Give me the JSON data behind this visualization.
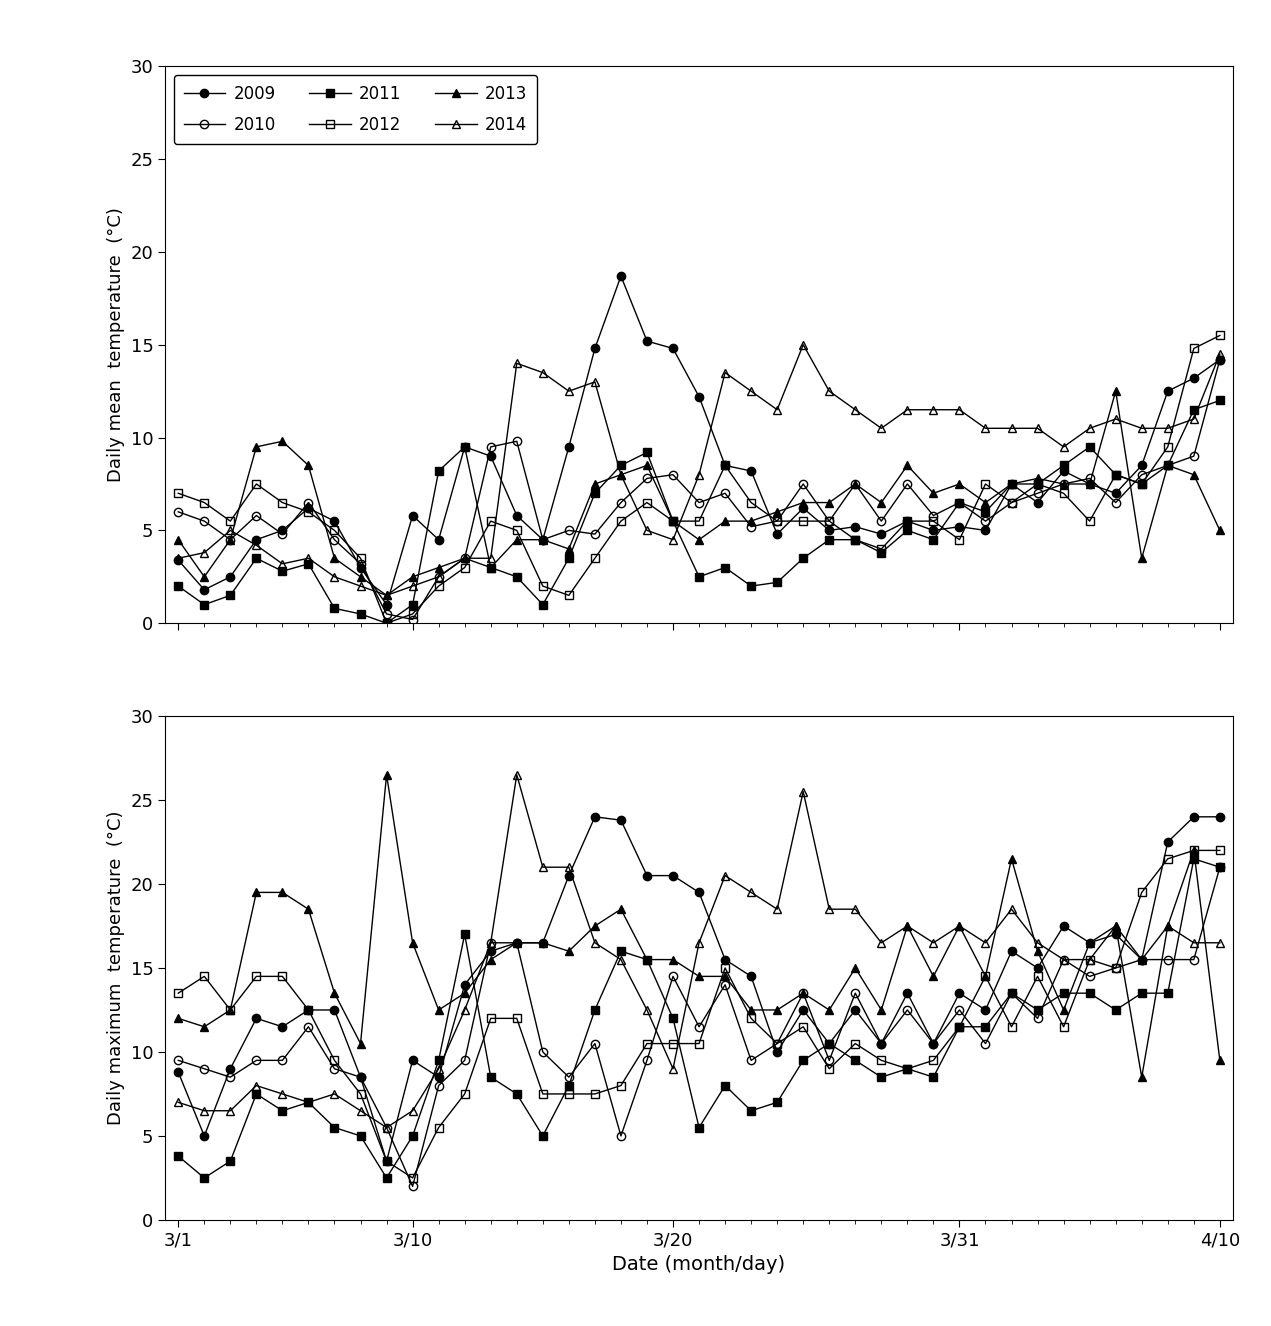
{
  "mean_temp": {
    "2009": [
      3.4,
      1.8,
      2.5,
      4.5,
      5.0,
      6.2,
      5.5,
      3.0,
      1.0,
      5.8,
      4.5,
      9.5,
      9.0,
      5.8,
      4.5,
      9.5,
      14.8,
      18.7,
      15.2,
      14.8,
      12.2,
      8.5,
      8.2,
      4.8,
      6.2,
      5.0,
      5.2,
      4.8,
      5.5,
      5.0,
      5.2,
      5.0,
      7.5,
      6.5,
      8.2,
      7.5,
      7.0,
      8.5,
      12.5,
      13.2,
      14.2
    ],
    "2010": [
      6.0,
      5.5,
      4.5,
      5.8,
      4.8,
      6.5,
      4.5,
      3.2,
      0.5,
      0.2,
      2.5,
      3.5,
      9.5,
      9.8,
      4.5,
      5.0,
      4.8,
      6.5,
      7.8,
      8.0,
      6.5,
      7.0,
      5.2,
      5.5,
      7.5,
      5.5,
      7.5,
      5.5,
      7.5,
      5.8,
      6.5,
      5.5,
      6.5,
      7.0,
      7.5,
      7.8,
      6.5,
      8.0,
      8.5,
      9.0,
      14.2
    ],
    "2011": [
      2.0,
      1.0,
      1.5,
      3.5,
      2.8,
      3.2,
      0.8,
      0.5,
      0.0,
      1.0,
      8.2,
      9.5,
      3.0,
      2.5,
      1.0,
      3.5,
      7.0,
      8.5,
      9.2,
      5.5,
      2.5,
      3.0,
      2.0,
      2.2,
      3.5,
      4.5,
      4.5,
      3.8,
      5.0,
      4.5,
      6.5,
      6.0,
      7.5,
      7.5,
      8.5,
      9.5,
      8.0,
      7.5,
      8.5,
      11.5,
      12.0
    ],
    "2012": [
      7.0,
      6.5,
      5.5,
      7.5,
      6.5,
      6.0,
      5.0,
      3.5,
      0.0,
      0.5,
      2.0,
      3.0,
      5.5,
      5.0,
      2.0,
      1.5,
      3.5,
      5.5,
      6.5,
      5.5,
      5.5,
      8.5,
      6.5,
      5.5,
      5.5,
      5.5,
      4.5,
      4.0,
      5.5,
      5.5,
      4.5,
      7.5,
      6.5,
      7.5,
      7.0,
      5.5,
      8.0,
      7.5,
      9.5,
      14.8,
      15.5
    ],
    "2013": [
      4.5,
      2.5,
      4.5,
      9.5,
      9.8,
      8.5,
      3.5,
      2.5,
      1.5,
      2.5,
      3.0,
      3.5,
      3.0,
      4.5,
      4.5,
      4.0,
      7.5,
      8.0,
      8.5,
      5.5,
      4.5,
      5.5,
      5.5,
      6.0,
      6.5,
      6.5,
      7.5,
      6.5,
      8.5,
      7.0,
      7.5,
      6.5,
      7.5,
      7.8,
      7.5,
      7.5,
      12.5,
      3.5,
      8.5,
      8.0,
      5.0
    ],
    "2014": [
      3.5,
      3.8,
      5.0,
      4.2,
      3.2,
      3.5,
      2.5,
      2.0,
      1.5,
      2.0,
      2.5,
      3.5,
      3.5,
      14.0,
      13.5,
      12.5,
      13.0,
      8.0,
      5.0,
      4.5,
      8.0,
      13.5,
      12.5,
      11.5,
      15.0,
      12.5,
      11.5,
      10.5,
      11.5,
      11.5,
      11.5,
      10.5,
      10.5,
      10.5,
      9.5,
      10.5,
      11.0,
      10.5,
      10.5,
      11.0,
      14.5
    ]
  },
  "max_temp": {
    "2009": [
      8.8,
      5.0,
      9.0,
      12.0,
      11.5,
      12.5,
      12.5,
      8.5,
      3.5,
      9.5,
      8.5,
      14.0,
      16.0,
      16.5,
      16.5,
      20.5,
      24.0,
      23.8,
      20.5,
      20.5,
      19.5,
      15.5,
      14.5,
      10.0,
      12.5,
      10.5,
      12.5,
      10.5,
      13.5,
      10.5,
      13.5,
      12.5,
      16.0,
      15.0,
      17.5,
      16.5,
      17.0,
      15.5,
      22.5,
      24.0,
      24.0
    ],
    "2010": [
      9.5,
      9.0,
      8.5,
      9.5,
      9.5,
      11.5,
      9.0,
      8.5,
      5.5,
      2.0,
      8.0,
      9.5,
      16.5,
      16.5,
      10.0,
      8.5,
      10.5,
      5.0,
      9.5,
      14.5,
      11.5,
      14.0,
      9.5,
      10.5,
      13.5,
      9.5,
      13.5,
      10.5,
      12.5,
      10.5,
      12.5,
      10.5,
      13.5,
      12.0,
      15.5,
      14.5,
      15.0,
      15.5,
      15.5,
      15.5,
      21.0
    ],
    "2011": [
      3.8,
      2.5,
      3.5,
      7.5,
      6.5,
      7.0,
      5.5,
      5.0,
      2.5,
      5.0,
      9.5,
      17.0,
      8.5,
      7.5,
      5.0,
      8.0,
      12.5,
      16.0,
      15.5,
      12.0,
      5.5,
      8.0,
      6.5,
      7.0,
      9.5,
      10.5,
      9.5,
      8.5,
      9.0,
      8.5,
      11.5,
      11.5,
      13.5,
      12.5,
      13.5,
      13.5,
      12.5,
      13.5,
      13.5,
      21.5,
      21.0
    ],
    "2012": [
      13.5,
      14.5,
      12.5,
      14.5,
      14.5,
      12.5,
      9.5,
      7.5,
      3.5,
      2.5,
      5.5,
      7.5,
      12.0,
      12.0,
      7.5,
      7.5,
      7.5,
      8.0,
      10.5,
      10.5,
      10.5,
      15.0,
      12.0,
      10.5,
      11.5,
      9.0,
      10.5,
      9.5,
      9.0,
      9.5,
      11.5,
      14.5,
      11.5,
      14.5,
      11.5,
      15.5,
      15.0,
      19.5,
      21.5,
      22.0,
      22.0
    ],
    "2013": [
      12.0,
      11.5,
      12.5,
      19.5,
      19.5,
      18.5,
      13.5,
      10.5,
      26.5,
      16.5,
      12.5,
      13.5,
      15.5,
      16.5,
      16.5,
      16.0,
      17.5,
      18.5,
      15.5,
      15.5,
      14.5,
      14.5,
      12.5,
      12.5,
      13.5,
      12.5,
      15.0,
      12.5,
      17.5,
      14.5,
      17.5,
      14.5,
      21.5,
      16.0,
      12.5,
      16.5,
      17.5,
      8.5,
      17.5,
      22.0,
      9.5
    ],
    "2014": [
      7.0,
      6.5,
      6.5,
      8.0,
      7.5,
      7.0,
      7.5,
      6.5,
      5.5,
      6.5,
      9.0,
      12.5,
      16.5,
      26.5,
      21.0,
      21.0,
      16.5,
      15.5,
      12.5,
      9.0,
      16.5,
      20.5,
      19.5,
      18.5,
      25.5,
      18.5,
      18.5,
      16.5,
      17.5,
      16.5,
      17.5,
      16.5,
      18.5,
      16.5,
      15.5,
      15.5,
      17.5,
      15.5,
      17.5,
      16.5,
      16.5
    ]
  },
  "years": [
    "2009",
    "2010",
    "2011",
    "2012",
    "2013",
    "2014"
  ],
  "x_tick_labels": [
    "3/1",
    "3/10",
    "3/20",
    "3/31",
    "4/10"
  ],
  "x_tick_positions": [
    0,
    9,
    19,
    30,
    40
  ],
  "ylabel_top": "Daily mean  temperature  (°C)",
  "ylabel_bottom": "Daily maximum  temperature  (°C)",
  "xlabel": "Date (month/day)",
  "ylim": [
    0,
    30
  ],
  "yticks": [
    0,
    5,
    10,
    15,
    20,
    25,
    30
  ],
  "legend_labels": [
    "2009",
    "2010",
    "2011",
    "2012",
    "2013",
    "2014"
  ],
  "figsize": [
    12.71,
    13.26
  ],
  "dpi": 100
}
